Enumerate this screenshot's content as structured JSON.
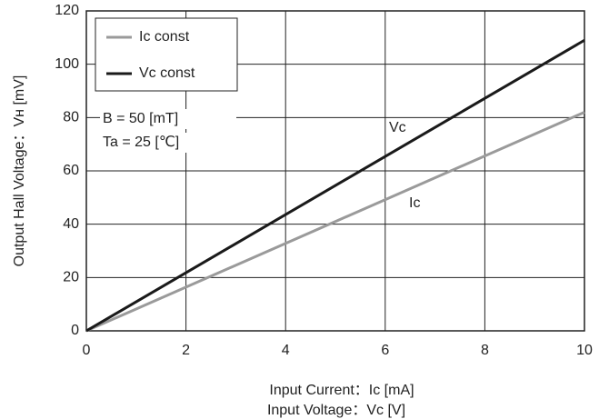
{
  "chart_data": {
    "type": "line",
    "x": [
      0,
      10
    ],
    "series": [
      {
        "name": "Iᴄ const",
        "color": "#9a9a9a",
        "values": [
          0,
          82
        ]
      },
      {
        "name": "Vᴄ const",
        "color": "#1a1a1a",
        "values": [
          0,
          109
        ]
      }
    ],
    "xlim": [
      0,
      10
    ],
    "xticks": [
      0,
      2,
      4,
      6,
      8,
      10
    ],
    "ylim": [
      0,
      120
    ],
    "yticks": [
      0,
      20,
      40,
      60,
      80,
      100,
      120
    ],
    "grid": true,
    "legend": "upper left",
    "ylabel": "Output Hall Voltage：Vʜ [mV]",
    "xlabel": [
      "Input Current：Iᴄ [mA]",
      "Input Voltage：Vᴄ [V]"
    ],
    "annotations": [
      "B  = 50 [mT]",
      "Ta = 25 [℃]",
      "Vᴄ",
      "Iᴄ"
    ]
  }
}
